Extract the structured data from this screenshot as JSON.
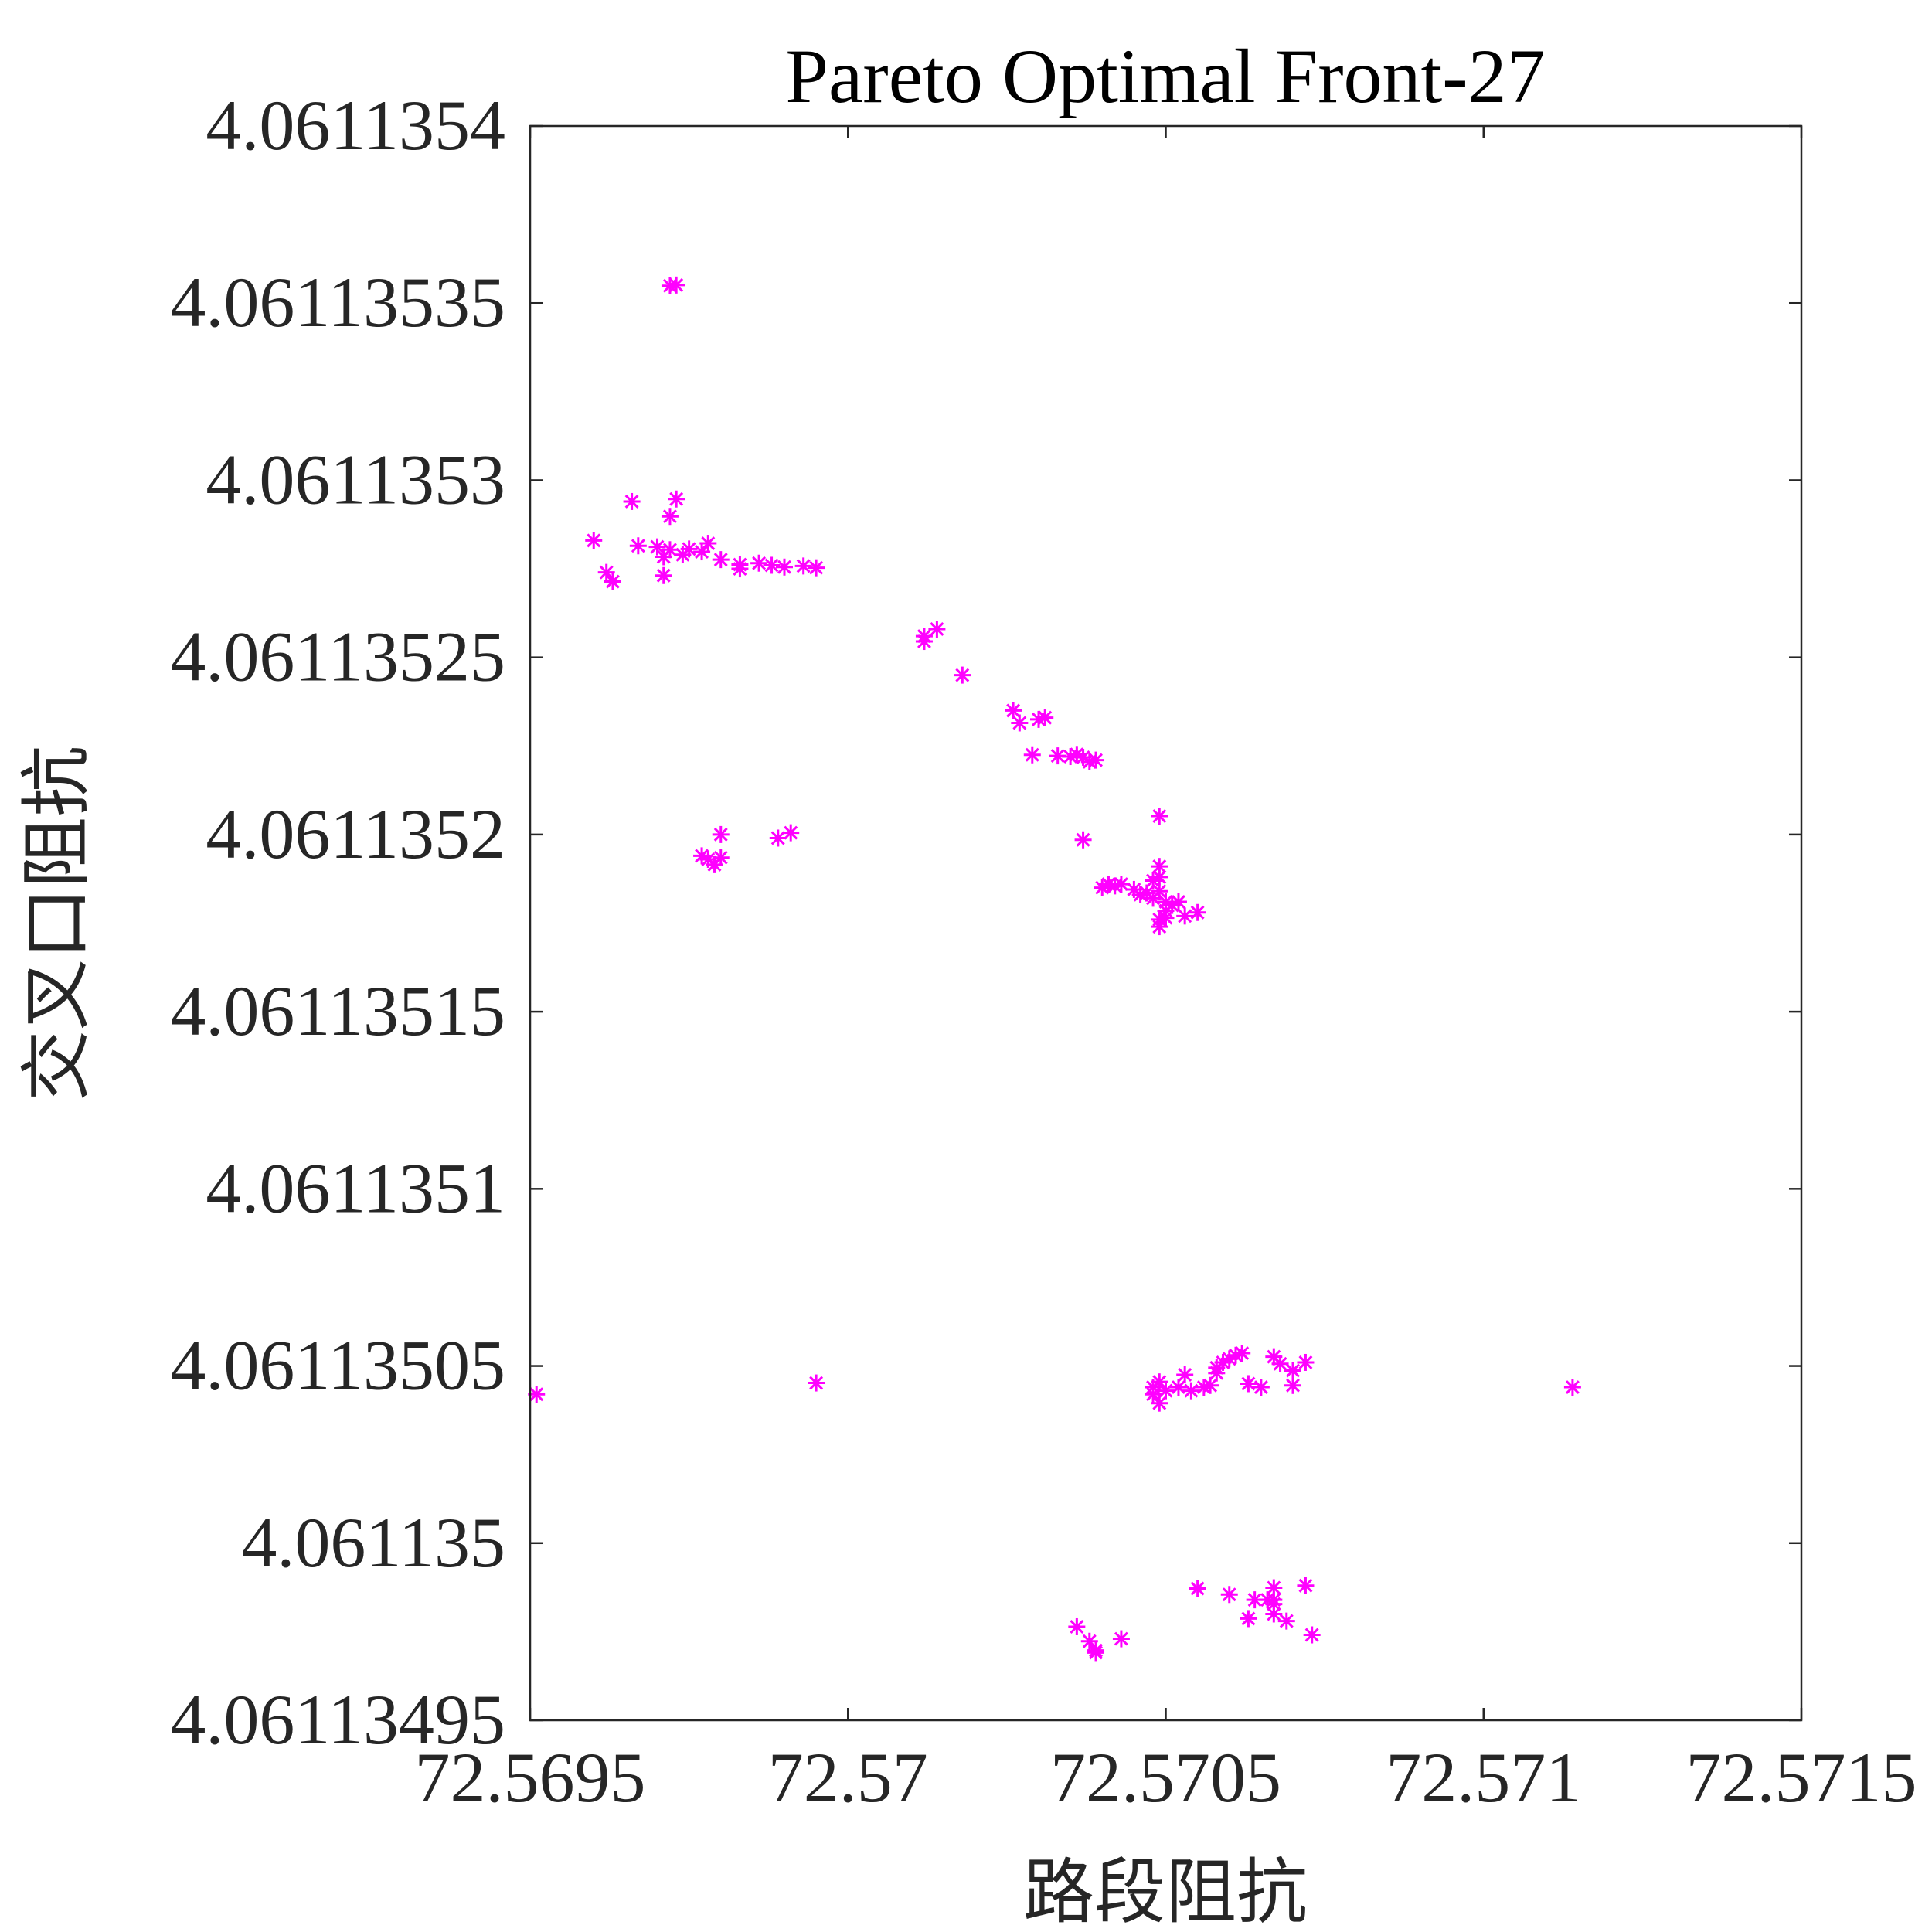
{
  "chart_data": {
    "type": "scatter",
    "title": "Pareto Optimal Front-27",
    "xlabel": "路段阻抗",
    "ylabel": "交叉口阻抗",
    "xlim": [
      72.5695,
      72.5715
    ],
    "ylim": [
      4.06113495,
      4.0611354
    ],
    "x_ticks": [
      "72.5695",
      "72.57",
      "72.5705",
      "72.571",
      "72.5715"
    ],
    "x_tick_values": [
      72.5695,
      72.57,
      72.5705,
      72.571,
      72.5715
    ],
    "y_ticks": [
      "4.06113495",
      "4.061135",
      "4.06113505",
      "4.0611351",
      "4.06113515",
      "4.0611352",
      "4.06113525",
      "4.0611353",
      "4.06113535",
      "4.0611354"
    ],
    "y_tick_values": [
      4.06113495,
      4.061135,
      4.06113505,
      4.0611351,
      4.06113515,
      4.0611352,
      4.06113525,
      4.0611353,
      4.06113535,
      4.0611354
    ],
    "grid": false,
    "marker": "asterisk",
    "marker_color": "#ff00ff",
    "axis_color": "#262626",
    "series": [
      {
        "points": [
          [
            72.56972,
            4.0611353549
          ],
          [
            72.56973,
            4.0611353551
          ],
          [
            72.56966,
            4.061135294
          ],
          [
            72.56973,
            4.0611352947
          ],
          [
            72.56972,
            4.0611352898
          ],
          [
            72.5696,
            4.061135283
          ],
          [
            72.56967,
            4.0611352815
          ],
          [
            72.56962,
            4.061135274
          ],
          [
            72.56963,
            4.0611352714
          ],
          [
            72.56971,
            4.0611352731
          ],
          [
            72.5697,
            4.0611352812
          ],
          [
            72.56972,
            4.0611352804
          ],
          [
            72.56975,
            4.0611352806
          ],
          [
            72.56977,
            4.0611352798
          ],
          [
            72.56978,
            4.0611352822
          ],
          [
            72.5698,
            4.0611352776
          ],
          [
            72.56983,
            4.0611352762
          ],
          [
            72.56986,
            4.0611352766
          ],
          [
            72.56988,
            4.061135276
          ],
          [
            72.5699,
            4.0611352755
          ],
          [
            72.56993,
            4.0611352758
          ],
          [
            72.56995,
            4.0611352753
          ],
          [
            72.56983,
            4.061135275
          ],
          [
            72.56971,
            4.0611352784
          ],
          [
            72.56974,
            4.061135279
          ],
          [
            72.57012,
            4.061135256
          ],
          [
            72.57014,
            4.061135258
          ],
          [
            72.57012,
            4.0611352545
          ],
          [
            72.57018,
            4.061135245
          ],
          [
            72.57026,
            4.061135235
          ],
          [
            72.57027,
            4.0611352315
          ],
          [
            72.5703,
            4.0611352325
          ],
          [
            72.57031,
            4.061135233
          ],
          [
            72.57029,
            4.0611352225
          ],
          [
            72.57033,
            4.0611352222
          ],
          [
            72.57035,
            4.061135222
          ],
          [
            72.57036,
            4.0611352226
          ],
          [
            72.57037,
            4.0611352218
          ],
          [
            72.56977,
            4.061135194
          ],
          [
            72.56978,
            4.061135193
          ],
          [
            72.56979,
            4.0611351915
          ],
          [
            72.5698,
            4.0611351935
          ],
          [
            72.5698,
            4.0611352
          ],
          [
            72.56989,
            4.061135199
          ],
          [
            72.56991,
            4.0611352005
          ],
          [
            72.57038,
            4.0611352205
          ],
          [
            72.57039,
            4.061135221
          ],
          [
            72.57037,
            4.0611351985
          ],
          [
            72.57049,
            4.0611352052
          ],
          [
            72.5704,
            4.061135185
          ],
          [
            72.57041,
            4.061135186
          ],
          [
            72.57042,
            4.0611351855
          ],
          [
            72.57043,
            4.061135186
          ],
          [
            72.57045,
            4.0611351845
          ],
          [
            72.57046,
            4.061135183
          ],
          [
            72.57047,
            4.0611351835
          ],
          [
            72.57048,
            4.061135187
          ],
          [
            72.57048,
            4.061135182
          ],
          [
            72.57049,
            4.061135184
          ],
          [
            72.57049,
            4.061135191
          ],
          [
            72.57049,
            4.061135188
          ],
          [
            72.5705,
            4.061135181
          ],
          [
            72.5705,
            4.0611351785
          ],
          [
            72.57051,
            4.06113518
          ],
          [
            72.57052,
            4.061135181
          ],
          [
            72.57049,
            4.061135176
          ],
          [
            72.57049,
            4.061135174
          ],
          [
            72.5705,
            4.0611351765
          ],
          [
            72.57053,
            4.061135177
          ],
          [
            72.57055,
            4.061135178
          ],
          [
            72.57048,
            4.061135042
          ],
          [
            72.57049,
            4.0611350395
          ],
          [
            72.57048,
            4.061135044
          ],
          [
            72.57049,
            4.0611350455
          ],
          [
            72.5705,
            4.061135043
          ],
          [
            72.57052,
            4.061135044
          ],
          [
            72.57053,
            4.0611350475
          ],
          [
            72.57054,
            4.061135043
          ],
          [
            72.57056,
            4.061135044
          ],
          [
            72.57057,
            4.0611350445
          ],
          [
            72.57058,
            4.061135048
          ],
          [
            72.57058,
            4.0611350495
          ],
          [
            72.57059,
            4.061135051
          ],
          [
            72.5706,
            4.061135052
          ],
          [
            72.57061,
            4.061135053
          ],
          [
            72.57062,
            4.0611350536
          ],
          [
            72.57063,
            4.061135045
          ],
          [
            72.57065,
            4.061135044
          ],
          [
            72.57067,
            4.0611350526
          ],
          [
            72.57068,
            4.0611350506
          ],
          [
            72.5707,
            4.0611350487
          ],
          [
            72.57072,
            4.061135051
          ],
          [
            72.5707,
            4.0611350445
          ],
          [
            72.57114,
            4.061135044
          ],
          [
            72.56951,
            4.061135042
          ],
          [
            72.56995,
            4.0611350452
          ],
          [
            72.57036,
            4.0611349764
          ],
          [
            72.57038,
            4.0611349723
          ],
          [
            72.57039,
            4.0611349697
          ],
          [
            72.57039,
            4.0611349691
          ],
          [
            72.57043,
            4.061134973
          ],
          [
            72.57055,
            4.0611349872
          ],
          [
            72.5706,
            4.0611349855
          ],
          [
            72.57064,
            4.061134984
          ],
          [
            72.57063,
            4.0611349787
          ],
          [
            72.57066,
            4.061134984
          ],
          [
            72.57067,
            4.061134984
          ],
          [
            72.57067,
            4.0611349828
          ],
          [
            72.57067,
            4.06113498
          ],
          [
            72.57067,
            4.0611349874
          ],
          [
            72.57069,
            4.061134978
          ],
          [
            72.57072,
            4.061134988
          ],
          [
            72.57073,
            4.0611349741
          ]
        ]
      }
    ]
  }
}
